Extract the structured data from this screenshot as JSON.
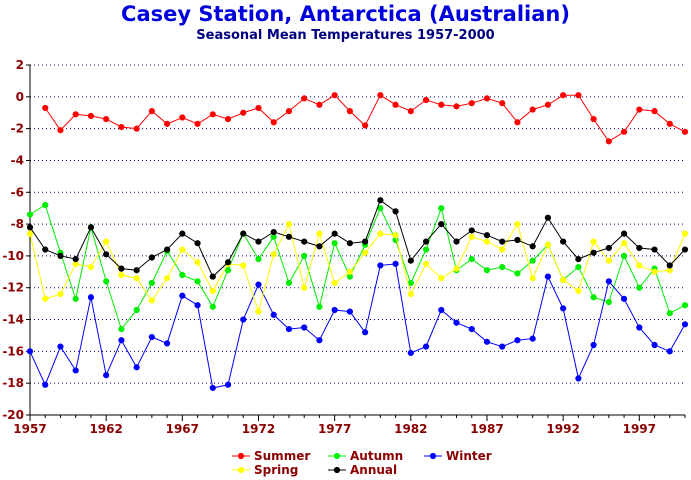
{
  "chart_data": {
    "type": "line",
    "title": "Casey Station, Antarctica (Australian)",
    "subtitle": "Seasonal Mean Temperatures 1957-2000",
    "xlim": [
      1957,
      2000
    ],
    "ylim": [
      -20,
      2
    ],
    "x_ticks": [
      1957,
      1962,
      1967,
      1972,
      1977,
      1982,
      1987,
      1992,
      1997
    ],
    "y_ticks": [
      2,
      0,
      -2,
      -4,
      -6,
      -8,
      -10,
      -12,
      -14,
      -16,
      -18,
      -20
    ],
    "grid": true,
    "legend_position": "bottom",
    "x": [
      1957,
      1958,
      1959,
      1960,
      1961,
      1962,
      1963,
      1964,
      1965,
      1966,
      1967,
      1968,
      1969,
      1970,
      1971,
      1972,
      1973,
      1974,
      1975,
      1976,
      1977,
      1978,
      1979,
      1980,
      1981,
      1982,
      1983,
      1984,
      1985,
      1986,
      1987,
      1988,
      1989,
      1990,
      1991,
      1992,
      1993,
      1994,
      1995,
      1996,
      1997,
      1998,
      1999,
      2000
    ],
    "series": [
      {
        "name": "Summer",
        "color": "#ff0000",
        "values": [
          null,
          -0.7,
          -2.1,
          -1.1,
          -1.2,
          -1.4,
          -1.9,
          -2.0,
          -0.9,
          -1.7,
          -1.3,
          -1.7,
          -1.1,
          -1.4,
          -1.0,
          -0.7,
          -1.6,
          -0.9,
          -0.1,
          -0.5,
          0.1,
          -0.9,
          -1.8,
          0.1,
          -0.5,
          -0.9,
          -0.2,
          -0.5,
          -0.6,
          -0.4,
          -0.1,
          -0.4,
          -1.6,
          -0.8,
          -0.5,
          0.1,
          0.1,
          -1.4,
          -2.8,
          -2.2,
          -0.8,
          -0.9,
          -1.7,
          -2.2
        ]
      },
      {
        "name": "Autumn",
        "color": "#00ee00",
        "values": [
          -7.4,
          -6.8,
          -9.8,
          -12.7,
          -8.2,
          -11.6,
          -14.6,
          -13.4,
          -11.7,
          -9.7,
          -11.2,
          -11.6,
          -13.2,
          -10.9,
          -8.6,
          -10.2,
          -8.8,
          -11.7,
          -10.0,
          -13.2,
          -9.2,
          -11.3,
          -9.3,
          -7.0,
          -9.0,
          -11.7,
          -9.6,
          -7.0,
          -10.9,
          -10.2,
          -10.9,
          -10.7,
          -11.1,
          -10.3,
          -9.3,
          -11.5,
          -10.7,
          -12.6,
          -12.9,
          -10.0,
          -12.0,
          -10.8,
          -13.6,
          -13.1
        ]
      },
      {
        "name": "Winter",
        "color": "#0000ff",
        "values": [
          -16.0,
          -18.1,
          -15.7,
          -17.2,
          -12.6,
          -17.5,
          -15.3,
          -17.0,
          -15.1,
          -15.5,
          -12.5,
          -13.1,
          -18.3,
          -18.1,
          -14.0,
          -11.8,
          -13.7,
          -14.6,
          -14.5,
          -15.3,
          -13.4,
          -13.5,
          -14.8,
          -10.6,
          -10.5,
          -16.1,
          -15.7,
          -13.4,
          -14.2,
          -14.6,
          -15.4,
          -15.7,
          -15.3,
          -15.2,
          -11.3,
          -13.3,
          -17.7,
          -15.6,
          -11.6,
          -12.7,
          -14.5,
          -15.6,
          -16.0,
          -14.3
        ]
      },
      {
        "name": "Spring",
        "color": "#ffff00",
        "values": [
          -8.6,
          -12.7,
          -12.4,
          -10.5,
          -10.7,
          -9.1,
          -11.2,
          -11.4,
          -12.8,
          -11.4,
          -9.6,
          -10.4,
          -12.2,
          -10.5,
          -10.6,
          -13.5,
          -9.9,
          -8.0,
          -12.0,
          -8.6,
          -11.7,
          -11.0,
          -9.8,
          -8.6,
          -8.7,
          -12.4,
          -10.5,
          -11.4,
          -10.8,
          -8.8,
          -9.1,
          -9.6,
          -8.0,
          -11.4,
          -9.3,
          -11.5,
          -12.2,
          -9.1,
          -10.3,
          -9.2,
          -10.6,
          -11.0,
          -10.9,
          -8.6
        ]
      },
      {
        "name": "Annual",
        "color": "#000000",
        "values": [
          -8.2,
          -9.6,
          -10.0,
          -10.2,
          -8.2,
          -9.9,
          -10.8,
          -10.9,
          -10.1,
          -9.6,
          -8.6,
          -9.2,
          -11.3,
          -10.4,
          -8.6,
          -9.1,
          -8.5,
          -8.8,
          -9.1,
          -9.4,
          -8.6,
          -9.2,
          -9.1,
          -6.5,
          -7.2,
          -10.3,
          -9.1,
          -8.0,
          -9.1,
          -8.4,
          -8.7,
          -9.1,
          -9.0,
          -9.4,
          -7.6,
          -9.1,
          -10.2,
          -9.8,
          -9.5,
          -8.6,
          -9.5,
          -9.6,
          -10.6,
          -9.6
        ]
      }
    ]
  }
}
